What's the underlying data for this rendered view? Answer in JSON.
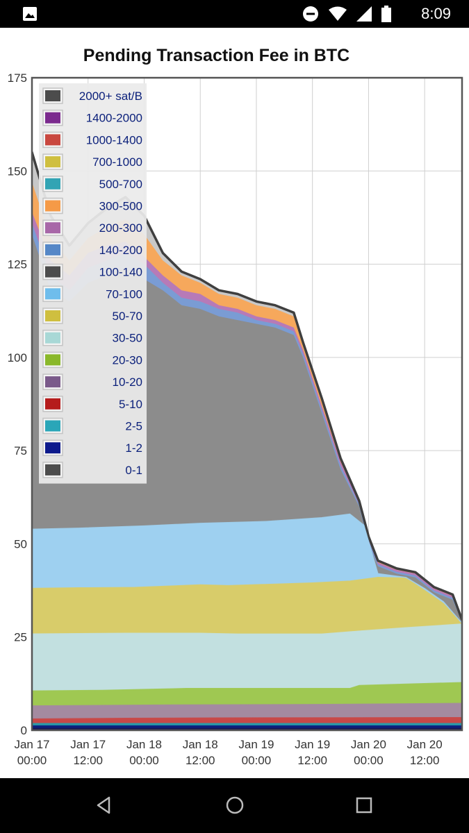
{
  "status_bar": {
    "time": "8:09",
    "icons": [
      "gallery-icon",
      "do-not-disturb-icon",
      "wifi-icon",
      "signal-icon",
      "battery-icon"
    ]
  },
  "nav_bar": {
    "icons": [
      "back-icon",
      "home-icon",
      "recents-icon"
    ]
  },
  "chart_data": {
    "type": "area",
    "title": "Pending Transaction Fee in BTC",
    "xlabel": "",
    "ylabel": "",
    "ylim": [
      0,
      175
    ],
    "xlim": [
      0,
      92
    ],
    "x_unit": "hours since Jan 17 00:00",
    "yticks": [
      0,
      25,
      50,
      75,
      100,
      125,
      150,
      175
    ],
    "xticks": [
      {
        "x": 0,
        "line1": "Jan 17",
        "line2": "00:00"
      },
      {
        "x": 12,
        "line1": "Jan 17",
        "line2": "12:00"
      },
      {
        "x": 24,
        "line1": "Jan 18",
        "line2": "00:00"
      },
      {
        "x": 36,
        "line1": "Jan 18",
        "line2": "12:00"
      },
      {
        "x": 48,
        "line1": "Jan 19",
        "line2": "00:00"
      },
      {
        "x": 60,
        "line1": "Jan 19",
        "line2": "12:00"
      },
      {
        "x": 72,
        "line1": "Jan 20",
        "line2": "00:00"
      },
      {
        "x": 84,
        "line1": "Jan 20",
        "line2": "12:00"
      }
    ],
    "grid": true,
    "legend_position": "top-left",
    "stacked": true,
    "layer_boundaries": [
      {
        "name": "0-1",
        "color": "#1a1a55",
        "points": [
          [
            -4,
            0.5
          ],
          [
            92,
            0.5
          ]
        ]
      },
      {
        "name": "1-2",
        "color": "#0d2080",
        "points": [
          [
            -4,
            1.2
          ],
          [
            92,
            1.2
          ]
        ]
      },
      {
        "name": "2-5",
        "color": "#2a9aaa",
        "points": [
          [
            -4,
            1.8
          ],
          [
            92,
            1.8
          ]
        ]
      },
      {
        "name": "5-10",
        "color": "#c84848",
        "points": [
          [
            -4,
            3.0
          ],
          [
            20,
            3.2
          ],
          [
            40,
            3.3
          ],
          [
            92,
            3.4
          ]
        ]
      },
      {
        "name": "10-20",
        "color": "#a48aa0",
        "points": [
          [
            -4,
            6.5
          ],
          [
            30,
            6.8
          ],
          [
            60,
            6.9
          ],
          [
            92,
            7.2
          ]
        ]
      },
      {
        "name": "20-30",
        "color": "#9fc852",
        "points": [
          [
            -4,
            10.5
          ],
          [
            15,
            10.7
          ],
          [
            33,
            11.2
          ],
          [
            68,
            11.2
          ],
          [
            70,
            12.0
          ],
          [
            92,
            12.8
          ]
        ]
      },
      {
        "name": "30-50",
        "color": "#c2e0e0",
        "points": [
          [
            -4,
            25.8
          ],
          [
            20,
            26.0
          ],
          [
            36,
            26.0
          ],
          [
            44,
            25.8
          ],
          [
            62,
            25.8
          ],
          [
            70,
            26.6
          ],
          [
            80,
            27.5
          ],
          [
            92,
            28.5
          ]
        ]
      },
      {
        "name": "50-70",
        "color": "#d8cc6a",
        "points": [
          [
            -4,
            38.0
          ],
          [
            10,
            38.2
          ],
          [
            22,
            38.3
          ],
          [
            36,
            39.0
          ],
          [
            42,
            38.8
          ],
          [
            60,
            39.5
          ],
          [
            68,
            40.0
          ],
          [
            74,
            41.0
          ],
          [
            80,
            40.8
          ],
          [
            84,
            37.5
          ],
          [
            88,
            34.0
          ],
          [
            92,
            28.6
          ]
        ]
      },
      {
        "name": "70-100",
        "color": "#9ed0f0",
        "points": [
          [
            -4,
            53.8
          ],
          [
            10,
            54.2
          ],
          [
            24,
            54.8
          ],
          [
            36,
            55.5
          ],
          [
            50,
            56.0
          ],
          [
            62,
            57.0
          ],
          [
            68,
            58.0
          ],
          [
            71,
            55.0
          ],
          [
            74,
            42.0
          ],
          [
            80,
            41.0
          ],
          [
            84,
            38.0
          ],
          [
            88,
            34.5
          ],
          [
            92,
            28.7
          ]
        ]
      },
      {
        "name": "100-140",
        "color": "#8c8c8c",
        "points": [
          [
            -4,
            135
          ],
          [
            0,
            133
          ],
          [
            4,
            118
          ],
          [
            8,
            115
          ],
          [
            12,
            120
          ],
          [
            16,
            122
          ],
          [
            20,
            124
          ],
          [
            24,
            121
          ],
          [
            28,
            118
          ],
          [
            32,
            114
          ],
          [
            36,
            113
          ],
          [
            40,
            111
          ],
          [
            44,
            110
          ],
          [
            48,
            109
          ],
          [
            52,
            108
          ],
          [
            56,
            106
          ],
          [
            58,
            100
          ],
          [
            62,
            85
          ],
          [
            66,
            70
          ],
          [
            70,
            60
          ],
          [
            72,
            50
          ],
          [
            74,
            44
          ],
          [
            78,
            42
          ],
          [
            82,
            41
          ],
          [
            86,
            37
          ],
          [
            90,
            35
          ],
          [
            92,
            29
          ]
        ]
      },
      {
        "name": "140-200",
        "color": "#7a9cd4",
        "points": [
          [
            -4,
            138
          ],
          [
            0,
            136
          ],
          [
            4,
            122
          ],
          [
            8,
            118
          ],
          [
            12,
            124
          ],
          [
            16,
            126
          ],
          [
            20,
            128
          ],
          [
            24,
            125
          ],
          [
            28,
            120
          ],
          [
            32,
            116
          ],
          [
            36,
            115
          ],
          [
            40,
            113
          ],
          [
            44,
            112
          ],
          [
            48,
            110
          ],
          [
            52,
            109
          ],
          [
            56,
            107
          ],
          [
            58,
            101
          ],
          [
            62,
            86
          ],
          [
            66,
            71
          ],
          [
            70,
            60.5
          ],
          [
            72,
            51
          ],
          [
            74,
            44.5
          ],
          [
            78,
            42.5
          ],
          [
            82,
            41.5
          ],
          [
            86,
            37.5
          ],
          [
            90,
            35.5
          ],
          [
            92,
            29.2
          ]
        ]
      },
      {
        "name": "200-300",
        "color": "#b77ab7",
        "points": [
          [
            -4,
            141
          ],
          [
            0,
            139
          ],
          [
            4,
            126
          ],
          [
            8,
            122
          ],
          [
            12,
            128
          ],
          [
            16,
            130
          ],
          [
            20,
            131
          ],
          [
            24,
            127
          ],
          [
            28,
            122
          ],
          [
            32,
            118
          ],
          [
            36,
            117
          ],
          [
            40,
            114
          ],
          [
            44,
            113
          ],
          [
            48,
            111
          ],
          [
            52,
            110
          ],
          [
            56,
            108
          ],
          [
            58,
            102
          ],
          [
            62,
            87
          ],
          [
            66,
            72
          ],
          [
            70,
            61
          ],
          [
            72,
            51.5
          ],
          [
            74,
            45
          ],
          [
            78,
            43
          ],
          [
            82,
            42
          ],
          [
            86,
            38
          ],
          [
            90,
            36
          ],
          [
            92,
            29.4
          ]
        ]
      },
      {
        "name": "300-500",
        "color": "#f6a85c",
        "points": [
          [
            -4,
            150
          ],
          [
            0,
            147
          ],
          [
            4,
            132
          ],
          [
            8,
            126
          ],
          [
            12,
            132
          ],
          [
            16,
            135
          ],
          [
            20,
            137
          ],
          [
            24,
            133
          ],
          [
            28,
            126
          ],
          [
            32,
            122
          ],
          [
            36,
            120
          ],
          [
            40,
            117
          ],
          [
            44,
            116
          ],
          [
            48,
            114
          ],
          [
            52,
            113
          ],
          [
            56,
            111
          ],
          [
            58,
            103
          ],
          [
            62,
            88
          ],
          [
            66,
            72.5
          ],
          [
            70,
            61.3
          ],
          [
            72,
            51.8
          ],
          [
            74,
            45.3
          ],
          [
            78,
            43.2
          ],
          [
            82,
            42.2
          ],
          [
            86,
            38.2
          ],
          [
            90,
            36.2
          ],
          [
            92,
            29.5
          ]
        ]
      },
      {
        "name": "2000+ sat/B",
        "color": "#c8c8c8",
        "points": [
          [
            -4,
            160
          ],
          [
            0,
            155
          ],
          [
            4,
            138
          ],
          [
            8,
            130
          ],
          [
            12,
            136
          ],
          [
            16,
            140
          ],
          [
            20,
            143
          ],
          [
            24,
            138
          ],
          [
            28,
            128
          ],
          [
            32,
            123
          ],
          [
            36,
            121
          ],
          [
            40,
            118
          ],
          [
            44,
            117
          ],
          [
            48,
            115
          ],
          [
            52,
            114
          ],
          [
            56,
            112
          ],
          [
            58,
            104
          ],
          [
            62,
            89
          ],
          [
            66,
            73
          ],
          [
            70,
            61.5
          ],
          [
            72,
            52
          ],
          [
            74,
            45.5
          ],
          [
            78,
            43.4
          ],
          [
            82,
            42.4
          ],
          [
            86,
            38.4
          ],
          [
            90,
            36.4
          ],
          [
            92,
            29.6
          ]
        ]
      }
    ],
    "legend": [
      {
        "label": "2000+ sat/B",
        "color": "#4c4c4c"
      },
      {
        "label": "1400-2000",
        "color": "#7b2a8e"
      },
      {
        "label": "1000-1400",
        "color": "#c9473f"
      },
      {
        "label": "700-1000",
        "color": "#cfbf3f"
      },
      {
        "label": "500-700",
        "color": "#32a4b4"
      },
      {
        "label": "300-500",
        "color": "#f59a47"
      },
      {
        "label": "200-300",
        "color": "#a867a8"
      },
      {
        "label": "140-200",
        "color": "#5587c7"
      },
      {
        "label": "100-140",
        "color": "#4c4c4c"
      },
      {
        "label": "70-100",
        "color": "#6fbdec"
      },
      {
        "label": "50-70",
        "color": "#cfbf3f"
      },
      {
        "label": "30-50",
        "color": "#a8d8d6"
      },
      {
        "label": "20-30",
        "color": "#8ab82a"
      },
      {
        "label": "10-20",
        "color": "#7a5a8a"
      },
      {
        "label": "5-10",
        "color": "#b51c1c"
      },
      {
        "label": "2-5",
        "color": "#2aa6b8"
      },
      {
        "label": "1-2",
        "color": "#0d1a8c"
      },
      {
        "label": "0-1",
        "color": "#4c4c4c"
      }
    ]
  }
}
